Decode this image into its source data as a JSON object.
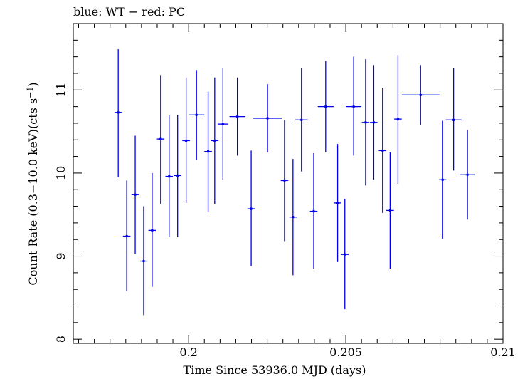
{
  "chart_data": {
    "type": "scatter",
    "title": "blue: WT − red: PC",
    "xlabel": "Time Since 53936.0 MJD (days)",
    "ylabel_main": "Count Rate (0.3−10.0 keV)(cts s",
    "ylabel_sup": "−1",
    "ylabel_close": ")",
    "xlim": [
      0.19633,
      0.21
    ],
    "ylim": [
      7.95,
      11.8
    ],
    "x_ticks": [
      0.2,
      0.205,
      0.21
    ],
    "x_tick_labels": [
      "0.2",
      "0.205",
      "0.21"
    ],
    "y_ticks": [
      8,
      9,
      10,
      11
    ],
    "y_tick_labels": [
      "8",
      "9",
      "10",
      "11"
    ],
    "grid": false,
    "series": [
      {
        "color": "#0000ee",
        "points": [
          {
            "x": 0.19776,
            "xerr": 0.00012,
            "y": 10.73,
            "yerr_low": 0.78,
            "yerr_high": 0.76
          },
          {
            "x": 0.19803,
            "xerr": 0.00012,
            "y": 9.24,
            "yerr_low": 0.66,
            "yerr_high": 0.67
          },
          {
            "x": 0.1983,
            "xerr": 0.00012,
            "y": 9.74,
            "yerr_low": 0.71,
            "yerr_high": 0.71
          },
          {
            "x": 0.19857,
            "xerr": 0.00012,
            "y": 8.94,
            "yerr_low": 0.65,
            "yerr_high": 0.66
          },
          {
            "x": 0.19884,
            "xerr": 0.00012,
            "y": 9.31,
            "yerr_low": 0.68,
            "yerr_high": 0.69
          },
          {
            "x": 0.19911,
            "xerr": 0.00012,
            "y": 10.41,
            "yerr_low": 0.78,
            "yerr_high": 0.77
          },
          {
            "x": 0.19938,
            "xerr": 0.00012,
            "y": 9.96,
            "yerr_low": 0.73,
            "yerr_high": 0.74
          },
          {
            "x": 0.19965,
            "xerr": 0.00012,
            "y": 9.97,
            "yerr_low": 0.74,
            "yerr_high": 0.73
          },
          {
            "x": 0.19992,
            "xerr": 0.00012,
            "y": 10.39,
            "yerr_low": 0.75,
            "yerr_high": 0.76
          },
          {
            "x": 0.20025,
            "xerr": 0.00025,
            "y": 10.7,
            "yerr_low": 0.54,
            "yerr_high": 0.54
          },
          {
            "x": 0.20062,
            "xerr": 0.00012,
            "y": 10.26,
            "yerr_low": 0.73,
            "yerr_high": 0.72
          },
          {
            "x": 0.20083,
            "xerr": 0.00012,
            "y": 10.39,
            "yerr_low": 0.76,
            "yerr_high": 0.76
          },
          {
            "x": 0.20109,
            "xerr": 0.00016,
            "y": 10.59,
            "yerr_low": 0.67,
            "yerr_high": 0.67
          },
          {
            "x": 0.20155,
            "xerr": 0.00025,
            "y": 10.68,
            "yerr_low": 0.47,
            "yerr_high": 0.47
          },
          {
            "x": 0.20199,
            "xerr": 0.00012,
            "y": 9.57,
            "yerr_low": 0.69,
            "yerr_high": 0.7
          },
          {
            "x": 0.20251,
            "xerr": 0.00045,
            "y": 10.66,
            "yerr_low": 0.41,
            "yerr_high": 0.41
          },
          {
            "x": 0.20305,
            "xerr": 0.00012,
            "y": 9.91,
            "yerr_low": 0.73,
            "yerr_high": 0.73
          },
          {
            "x": 0.20332,
            "xerr": 0.00012,
            "y": 9.47,
            "yerr_low": 0.7,
            "yerr_high": 0.7
          },
          {
            "x": 0.20359,
            "xerr": 0.0002,
            "y": 10.64,
            "yerr_low": 0.62,
            "yerr_high": 0.62
          },
          {
            "x": 0.20398,
            "xerr": 0.00012,
            "y": 9.54,
            "yerr_low": 0.69,
            "yerr_high": 0.7
          },
          {
            "x": 0.20436,
            "xerr": 0.00025,
            "y": 10.8,
            "yerr_low": 0.55,
            "yerr_high": 0.55
          },
          {
            "x": 0.20474,
            "xerr": 0.00012,
            "y": 9.64,
            "yerr_low": 0.71,
            "yerr_high": 0.71
          },
          {
            "x": 0.20497,
            "xerr": 0.00012,
            "y": 9.02,
            "yerr_low": 0.66,
            "yerr_high": 0.67
          },
          {
            "x": 0.20525,
            "xerr": 0.00025,
            "y": 10.8,
            "yerr_low": 0.59,
            "yerr_high": 0.6
          },
          {
            "x": 0.20563,
            "xerr": 0.00012,
            "y": 10.61,
            "yerr_low": 0.76,
            "yerr_high": 0.76
          },
          {
            "x": 0.20589,
            "xerr": 0.00012,
            "y": 10.61,
            "yerr_low": 0.69,
            "yerr_high": 0.69
          },
          {
            "x": 0.20617,
            "xerr": 0.00012,
            "y": 10.27,
            "yerr_low": 0.75,
            "yerr_high": 0.75
          },
          {
            "x": 0.20641,
            "xerr": 0.00012,
            "y": 9.55,
            "yerr_low": 0.7,
            "yerr_high": 0.7
          },
          {
            "x": 0.20666,
            "xerr": 0.00012,
            "y": 10.65,
            "yerr_low": 0.78,
            "yerr_high": 0.77
          },
          {
            "x": 0.20738,
            "xerr": 0.0006,
            "y": 10.94,
            "yerr_low": 0.36,
            "yerr_high": 0.36
          },
          {
            "x": 0.20808,
            "xerr": 0.00012,
            "y": 9.92,
            "yerr_low": 0.71,
            "yerr_high": 0.71
          },
          {
            "x": 0.20843,
            "xerr": 0.00025,
            "y": 10.64,
            "yerr_low": 0.61,
            "yerr_high": 0.62
          },
          {
            "x": 0.20887,
            "xerr": 0.00025,
            "y": 9.98,
            "yerr_low": 0.54,
            "yerr_high": 0.54
          }
        ]
      }
    ]
  }
}
